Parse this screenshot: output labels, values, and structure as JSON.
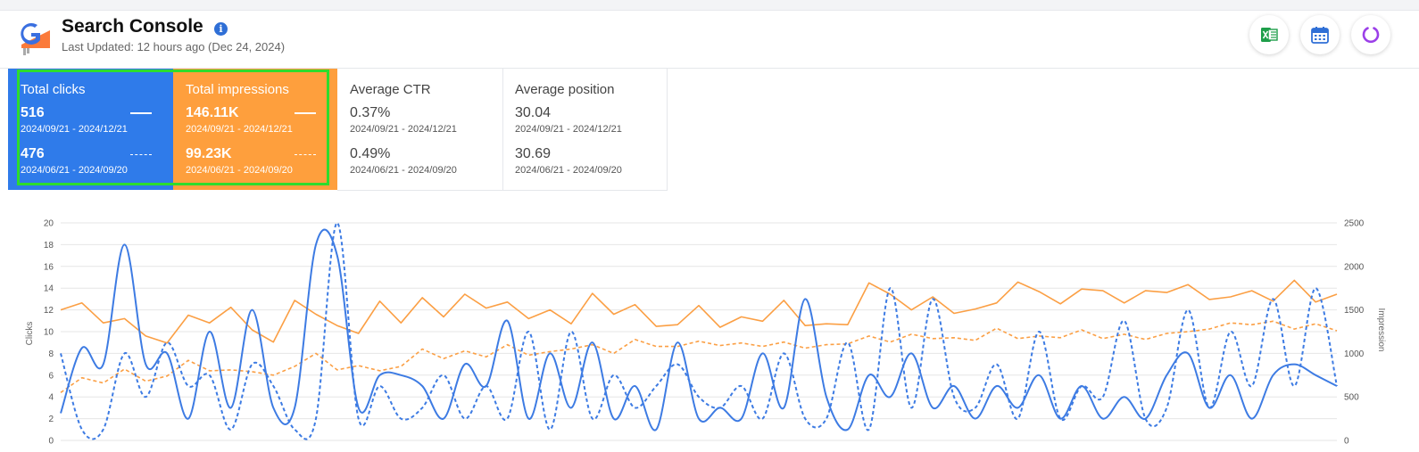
{
  "header": {
    "title": "Search Console",
    "info_icon": "i",
    "last_updated": "Last Updated: 12 hours ago (Dec 24, 2024)",
    "tools": [
      {
        "name": "excel-export-icon",
        "color": "#1e9e4a"
      },
      {
        "name": "calendar-icon",
        "color": "#2f6fd6"
      },
      {
        "name": "refresh-icon",
        "color": "#9b3fe8"
      }
    ]
  },
  "cards": [
    {
      "label": "Total clicks",
      "current_value": "516",
      "current_range": "2024/09/21 - 2024/12/21",
      "previous_value": "476",
      "previous_range": "2024/06/21 - 2024/09/20",
      "color": "#2f7bea"
    },
    {
      "label": "Total impressions",
      "current_value": "146.11K",
      "current_range": "2024/09/21 - 2024/12/21",
      "previous_value": "99.23K",
      "previous_range": "2024/06/21 - 2024/09/20",
      "color": "#fe9f3d"
    },
    {
      "label": "Average CTR",
      "current_value": "0.37%",
      "current_range": "2024/09/21 - 2024/12/21",
      "previous_value": "0.49%",
      "previous_range": "2024/06/21 - 2024/09/20"
    },
    {
      "label": "Average position",
      "current_value": "30.04",
      "current_range": "2024/09/21 - 2024/12/21",
      "previous_value": "30.69",
      "previous_range": "2024/06/21 - 2024/09/20"
    }
  ],
  "chart_data": {
    "type": "line",
    "ylabel": "Clicks",
    "y2label": "Impression",
    "ylim": [
      0,
      20
    ],
    "y2lim": [
      0,
      2500
    ],
    "yticks": [
      "0",
      "2",
      "4",
      "6",
      "8",
      "10",
      "12",
      "14",
      "16",
      "18",
      "20"
    ],
    "y2ticks": [
      "0",
      "500",
      "1000",
      "1500",
      "2000",
      "2500"
    ],
    "grid": true,
    "colors": {
      "clicks": "#3d7be3",
      "impressions": "#fb9f44"
    },
    "series": [
      {
        "key": "clicks_current",
        "axis": "left",
        "style": "solid",
        "color": "#3d7be3",
        "values": [
          2.5,
          8.5,
          7,
          18,
          7,
          8,
          2,
          10,
          3,
          12,
          3,
          3,
          18,
          17,
          3,
          6,
          6,
          5,
          2,
          7,
          5,
          11,
          2,
          8,
          3,
          9,
          2,
          5,
          1,
          9,
          2,
          3,
          2,
          8,
          3,
          13,
          4,
          1,
          6,
          4,
          8,
          3,
          5,
          2,
          5,
          3,
          6,
          2,
          5,
          2,
          4,
          2,
          6,
          8,
          3,
          6,
          2,
          6,
          7,
          6,
          5
        ]
      },
      {
        "key": "clicks_previous",
        "axis": "left",
        "style": "dashed",
        "color": "#3d7be3",
        "values": [
          8,
          1,
          1,
          8,
          4,
          9,
          5,
          6,
          1,
          7,
          5,
          1,
          2,
          20,
          2,
          5,
          2,
          3,
          6,
          2,
          5,
          2,
          10,
          1,
          10,
          2,
          6,
          3,
          5,
          7,
          4,
          3,
          5,
          2,
          8,
          2,
          2,
          9,
          1,
          14,
          3,
          13,
          4,
          3,
          7,
          2,
          10,
          2,
          5,
          4,
          11,
          2,
          3,
          12,
          3,
          10,
          5,
          13,
          5,
          14,
          5
        ]
      },
      {
        "key": "impressions_current",
        "axis": "right",
        "style": "solid",
        "color": "#fb9f44",
        "values": [
          1500,
          1580,
          1350,
          1400,
          1200,
          1120,
          1440,
          1350,
          1530,
          1270,
          1130,
          1610,
          1450,
          1320,
          1230,
          1600,
          1350,
          1640,
          1420,
          1680,
          1520,
          1590,
          1400,
          1500,
          1340,
          1690,
          1450,
          1560,
          1310,
          1330,
          1550,
          1300,
          1420,
          1370,
          1610,
          1320,
          1340,
          1330,
          1810,
          1680,
          1500,
          1650,
          1460,
          1510,
          1580,
          1820,
          1710,
          1570,
          1740,
          1720,
          1580,
          1720,
          1700,
          1790,
          1620,
          1650,
          1720,
          1600,
          1840,
          1590,
          1680
        ]
      },
      {
        "key": "impressions_previous",
        "axis": "right",
        "style": "dashed",
        "color": "#fb9f44",
        "values": [
          550,
          720,
          660,
          820,
          680,
          740,
          920,
          800,
          810,
          790,
          750,
          850,
          1000,
          810,
          860,
          800,
          850,
          1050,
          940,
          1030,
          960,
          1100,
          980,
          1020,
          1050,
          1100,
          1000,
          1160,
          1080,
          1080,
          1140,
          1090,
          1120,
          1080,
          1130,
          1060,
          1100,
          1110,
          1200,
          1130,
          1220,
          1170,
          1180,
          1150,
          1290,
          1170,
          1200,
          1180,
          1270,
          1170,
          1220,
          1160,
          1230,
          1250,
          1280,
          1350,
          1330,
          1370,
          1280,
          1340,
          1260
        ]
      }
    ]
  }
}
